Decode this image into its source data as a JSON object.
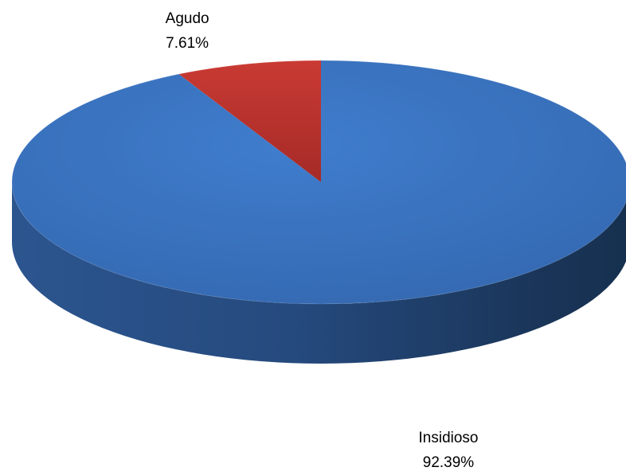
{
  "chart_data": {
    "type": "pie",
    "title": "",
    "slices": [
      {
        "label": "Agudo",
        "value": 7.61,
        "value_label": "7.61%",
        "color": "#c0392b"
      },
      {
        "label": "Insidioso",
        "value": 92.39,
        "value_label": "92.39%",
        "color": "#3c78c8"
      }
    ],
    "start_at": "top",
    "direction": "counterclockwise",
    "style": "3d",
    "legend": "none"
  }
}
